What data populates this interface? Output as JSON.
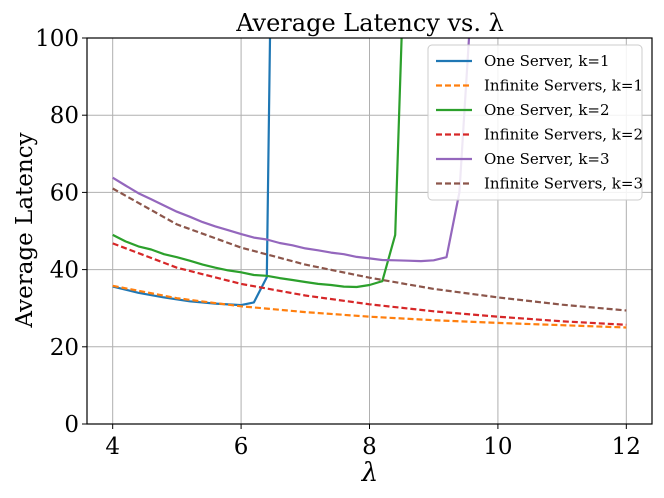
{
  "chart_data": {
    "type": "line",
    "title": "Average Latency vs. λ",
    "xlabel": "λ",
    "ylabel": "Average Latency",
    "xlim": [
      3.6,
      12.4
    ],
    "ylim": [
      0,
      100
    ],
    "xticks": [
      4,
      6,
      8,
      10,
      12
    ],
    "yticks": [
      0,
      20,
      40,
      60,
      80,
      100
    ],
    "grid": true,
    "legend_position": "top-right",
    "series": [
      {
        "name": "One Server, k=1",
        "color": "#1f77b4",
        "style": "solid",
        "x": [
          4.0,
          4.4,
          4.8,
          5.2,
          5.6,
          6.0,
          6.2,
          6.4,
          6.45
        ],
        "y": [
          35.6,
          34.0,
          32.8,
          31.8,
          31.2,
          30.8,
          31.5,
          38.0,
          100
        ]
      },
      {
        "name": "Infinite Servers, k=1",
        "color": "#ff7f0e",
        "style": "dashed",
        "x": [
          4,
          5,
          6,
          7,
          8,
          9,
          10,
          11,
          12
        ],
        "y": [
          35.8,
          32.6,
          30.5,
          29.0,
          27.8,
          26.9,
          26.2,
          25.6,
          25.0
        ]
      },
      {
        "name": "One Server, k=2",
        "color": "#2ca02c",
        "style": "solid",
        "x": [
          4.0,
          4.2,
          4.4,
          4.6,
          4.8,
          5.0,
          5.2,
          5.4,
          5.6,
          5.8,
          6.0,
          6.2,
          6.4,
          6.6,
          6.8,
          7.0,
          7.2,
          7.4,
          7.6,
          7.8,
          8.0,
          8.2,
          8.4,
          8.5
        ],
        "y": [
          49.0,
          47.3,
          46.0,
          45.2,
          44.0,
          43.2,
          42.3,
          41.3,
          40.5,
          39.8,
          39.3,
          38.6,
          38.4,
          37.8,
          37.3,
          36.8,
          36.3,
          36.0,
          35.6,
          35.5,
          36.0,
          37.0,
          49.0,
          100
        ]
      },
      {
        "name": "Infinite Servers, k=2",
        "color": "#d62728",
        "style": "dashed",
        "x": [
          4,
          5,
          6,
          7,
          8,
          9,
          10,
          11,
          12
        ],
        "y": [
          46.8,
          40.5,
          36.3,
          33.3,
          31.0,
          29.2,
          27.8,
          26.6,
          25.7
        ]
      },
      {
        "name": "One Server, k=3",
        "color": "#9467bd",
        "style": "solid",
        "x": [
          4.0,
          4.2,
          4.4,
          4.6,
          4.8,
          5.0,
          5.2,
          5.4,
          5.6,
          5.8,
          6.0,
          6.2,
          6.4,
          6.6,
          6.8,
          7.0,
          7.2,
          7.4,
          7.6,
          7.8,
          8.0,
          8.2,
          8.4,
          8.6,
          8.8,
          9.0,
          9.2,
          9.4,
          9.55
        ],
        "y": [
          63.8,
          61.8,
          59.8,
          58.2,
          56.6,
          55.0,
          53.7,
          52.3,
          51.2,
          50.2,
          49.2,
          48.3,
          47.8,
          46.9,
          46.3,
          45.5,
          45.0,
          44.4,
          44.0,
          43.3,
          42.9,
          42.5,
          42.4,
          42.3,
          42.2,
          42.4,
          43.2,
          60.0,
          100
        ]
      },
      {
        "name": "Infinite Servers, k=3",
        "color": "#8c564b",
        "style": "dashed",
        "x": [
          4,
          5,
          6,
          7,
          8,
          9,
          10,
          11,
          12
        ],
        "y": [
          61.0,
          51.7,
          45.7,
          41.3,
          37.9,
          35.0,
          32.8,
          30.9,
          29.4
        ]
      }
    ]
  }
}
